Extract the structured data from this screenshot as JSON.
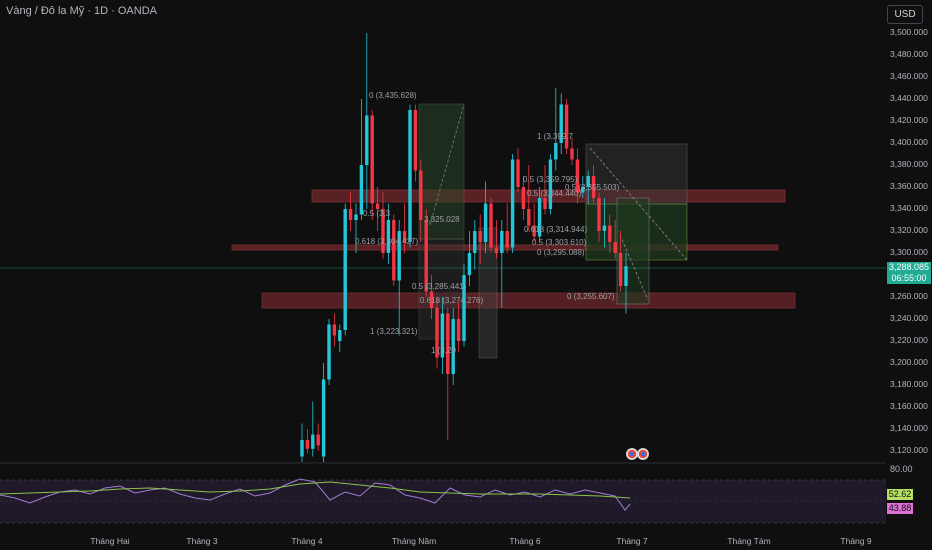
{
  "header": {
    "symbol_title": "Vàng / Đô la Mỹ · 1D · OANDA",
    "currency_button": "USD"
  },
  "price_axis": {
    "labels": [
      "3,500.000",
      "3,480.000",
      "3,460.000",
      "3,440.000",
      "3,420.000",
      "3,400.000",
      "3,380.000",
      "3,360.000",
      "3,340.000",
      "3,320.000",
      "3,300.000",
      "3,280.000",
      "3,260.000",
      "3,240.000",
      "3,220.000",
      "3,200.000",
      "3,180.000",
      "3,160.000",
      "3,140.000",
      "3,120.000"
    ],
    "current_price": "3,288.085",
    "countdown": "06:55:00"
  },
  "rsi_axis": {
    "top_label": "80.00",
    "rsi_value": "52.62",
    "ma_value": "43.88"
  },
  "time_axis": {
    "labels": [
      "Tháng Hai",
      "Tháng 3",
      "Tháng 4",
      "Tháng Năm",
      "Tháng 6",
      "Tháng 7",
      "Tháng Tám",
      "Tháng 9"
    ]
  },
  "fib_labels": [
    "0 (3,435.628)",
    "1 (3,399.7",
    "0.5 (3,359.795)",
    "0.5 (3,344.440)",
    "0.5 (3,355.503)",
    "0.5 (3,3",
    "3,325.028",
    "0.618 (3,314.944)",
    "0.5 (3,303.610)",
    "0 (3,295.088)",
    "0.618 (3,304.427)",
    "0.5 (3,285.441)",
    "0.618 (3,274.276)",
    "0 (3,255.607)",
    "1 (3,223.321)",
    "1 (3,20"
  ],
  "colors": {
    "background": "#0f0f0f",
    "bull": "#26c6da",
    "bear": "#f23645",
    "zone_red": "#7a2a2e",
    "zone_green": "#1f3a1f",
    "price_tag": "#22ab94",
    "rsi_line": "#a47bd1",
    "rsi_ma": "#8bc34a"
  },
  "chart_data": {
    "type": "candlestick",
    "y_range": [
      3110,
      3510
    ],
    "candles": [
      {
        "o": 3115,
        "h": 3145,
        "l": 3110,
        "c": 3130
      },
      {
        "o": 3130,
        "h": 3140,
        "l": 3118,
        "c": 3122
      },
      {
        "o": 3122,
        "h": 3165,
        "l": 3115,
        "c": 3135
      },
      {
        "o": 3135,
        "h": 3145,
        "l": 3120,
        "c": 3125
      },
      {
        "o": 3115,
        "h": 3200,
        "l": 3110,
        "c": 3185
      },
      {
        "o": 3185,
        "h": 3240,
        "l": 3180,
        "c": 3235
      },
      {
        "o": 3235,
        "h": 3245,
        "l": 3215,
        "c": 3225
      },
      {
        "o": 3220,
        "h": 3235,
        "l": 3210,
        "c": 3230
      },
      {
        "o": 3230,
        "h": 3345,
        "l": 3225,
        "c": 3340
      },
      {
        "o": 3340,
        "h": 3355,
        "l": 3320,
        "c": 3330
      },
      {
        "o": 3330,
        "h": 3345,
        "l": 3300,
        "c": 3335
      },
      {
        "o": 3335,
        "h": 3440,
        "l": 3330,
        "c": 3380
      },
      {
        "o": 3380,
        "h": 3500,
        "l": 3340,
        "c": 3425
      },
      {
        "o": 3425,
        "h": 3430,
        "l": 3330,
        "c": 3345
      },
      {
        "o": 3345,
        "h": 3360,
        "l": 3320,
        "c": 3340
      },
      {
        "o": 3340,
        "h": 3355,
        "l": 3295,
        "c": 3300
      },
      {
        "o": 3300,
        "h": 3345,
        "l": 3290,
        "c": 3330
      },
      {
        "o": 3330,
        "h": 3335,
        "l": 3270,
        "c": 3275
      },
      {
        "o": 3275,
        "h": 3330,
        "l": 3225,
        "c": 3320
      },
      {
        "o": 3320,
        "h": 3345,
        "l": 3300,
        "c": 3310
      },
      {
        "o": 3310,
        "h": 3435,
        "l": 3305,
        "c": 3430
      },
      {
        "o": 3430,
        "h": 3435,
        "l": 3365,
        "c": 3375
      },
      {
        "o": 3375,
        "h": 3385,
        "l": 3310,
        "c": 3330
      },
      {
        "o": 3330,
        "h": 3340,
        "l": 3260,
        "c": 3265
      },
      {
        "o": 3265,
        "h": 3280,
        "l": 3240,
        "c": 3250
      },
      {
        "o": 3250,
        "h": 3260,
        "l": 3195,
        "c": 3205
      },
      {
        "o": 3205,
        "h": 3260,
        "l": 3190,
        "c": 3245
      },
      {
        "o": 3245,
        "h": 3250,
        "l": 3130,
        "c": 3190
      },
      {
        "o": 3190,
        "h": 3250,
        "l": 3180,
        "c": 3240
      },
      {
        "o": 3240,
        "h": 3255,
        "l": 3210,
        "c": 3220
      },
      {
        "o": 3220,
        "h": 3290,
        "l": 3215,
        "c": 3280
      },
      {
        "o": 3280,
        "h": 3320,
        "l": 3270,
        "c": 3300
      },
      {
        "o": 3300,
        "h": 3330,
        "l": 3285,
        "c": 3320
      },
      {
        "o": 3320,
        "h": 3335,
        "l": 3290,
        "c": 3310
      },
      {
        "o": 3310,
        "h": 3365,
        "l": 3300,
        "c": 3345
      },
      {
        "o": 3345,
        "h": 3350,
        "l": 3300,
        "c": 3305
      },
      {
        "o": 3305,
        "h": 3330,
        "l": 3295,
        "c": 3300
      },
      {
        "o": 3300,
        "h": 3330,
        "l": 3250,
        "c": 3320
      },
      {
        "o": 3320,
        "h": 3345,
        "l": 3300,
        "c": 3305
      },
      {
        "o": 3305,
        "h": 3390,
        "l": 3300,
        "c": 3385
      },
      {
        "o": 3385,
        "h": 3395,
        "l": 3355,
        "c": 3360
      },
      {
        "o": 3360,
        "h": 3370,
        "l": 3330,
        "c": 3340
      },
      {
        "o": 3340,
        "h": 3380,
        "l": 3320,
        "c": 3325
      },
      {
        "o": 3325,
        "h": 3345,
        "l": 3310,
        "c": 3315
      },
      {
        "o": 3315,
        "h": 3360,
        "l": 3310,
        "c": 3350
      },
      {
        "o": 3350,
        "h": 3380,
        "l": 3335,
        "c": 3340
      },
      {
        "o": 3340,
        "h": 3390,
        "l": 3335,
        "c": 3385
      },
      {
        "o": 3385,
        "h": 3450,
        "l": 3375,
        "c": 3400
      },
      {
        "o": 3400,
        "h": 3445,
        "l": 3390,
        "c": 3435
      },
      {
        "o": 3435,
        "h": 3440,
        "l": 3390,
        "c": 3395
      },
      {
        "o": 3395,
        "h": 3405,
        "l": 3380,
        "c": 3385
      },
      {
        "o": 3385,
        "h": 3395,
        "l": 3345,
        "c": 3355
      },
      {
        "o": 3355,
        "h": 3370,
        "l": 3350,
        "c": 3360
      },
      {
        "o": 3360,
        "h": 3375,
        "l": 3345,
        "c": 3370
      },
      {
        "o": 3370,
        "h": 3380,
        "l": 3345,
        "c": 3350
      },
      {
        "o": 3350,
        "h": 3355,
        "l": 3310,
        "c": 3320
      },
      {
        "o": 3320,
        "h": 3350,
        "l": 3305,
        "c": 3325
      },
      {
        "o": 3325,
        "h": 3335,
        "l": 3300,
        "c": 3310
      },
      {
        "o": 3310,
        "h": 3330,
        "l": 3295,
        "c": 3300
      },
      {
        "o": 3300,
        "h": 3320,
        "l": 3265,
        "c": 3270
      },
      {
        "o": 3270,
        "h": 3300,
        "l": 3245,
        "c": 3288
      }
    ]
  }
}
